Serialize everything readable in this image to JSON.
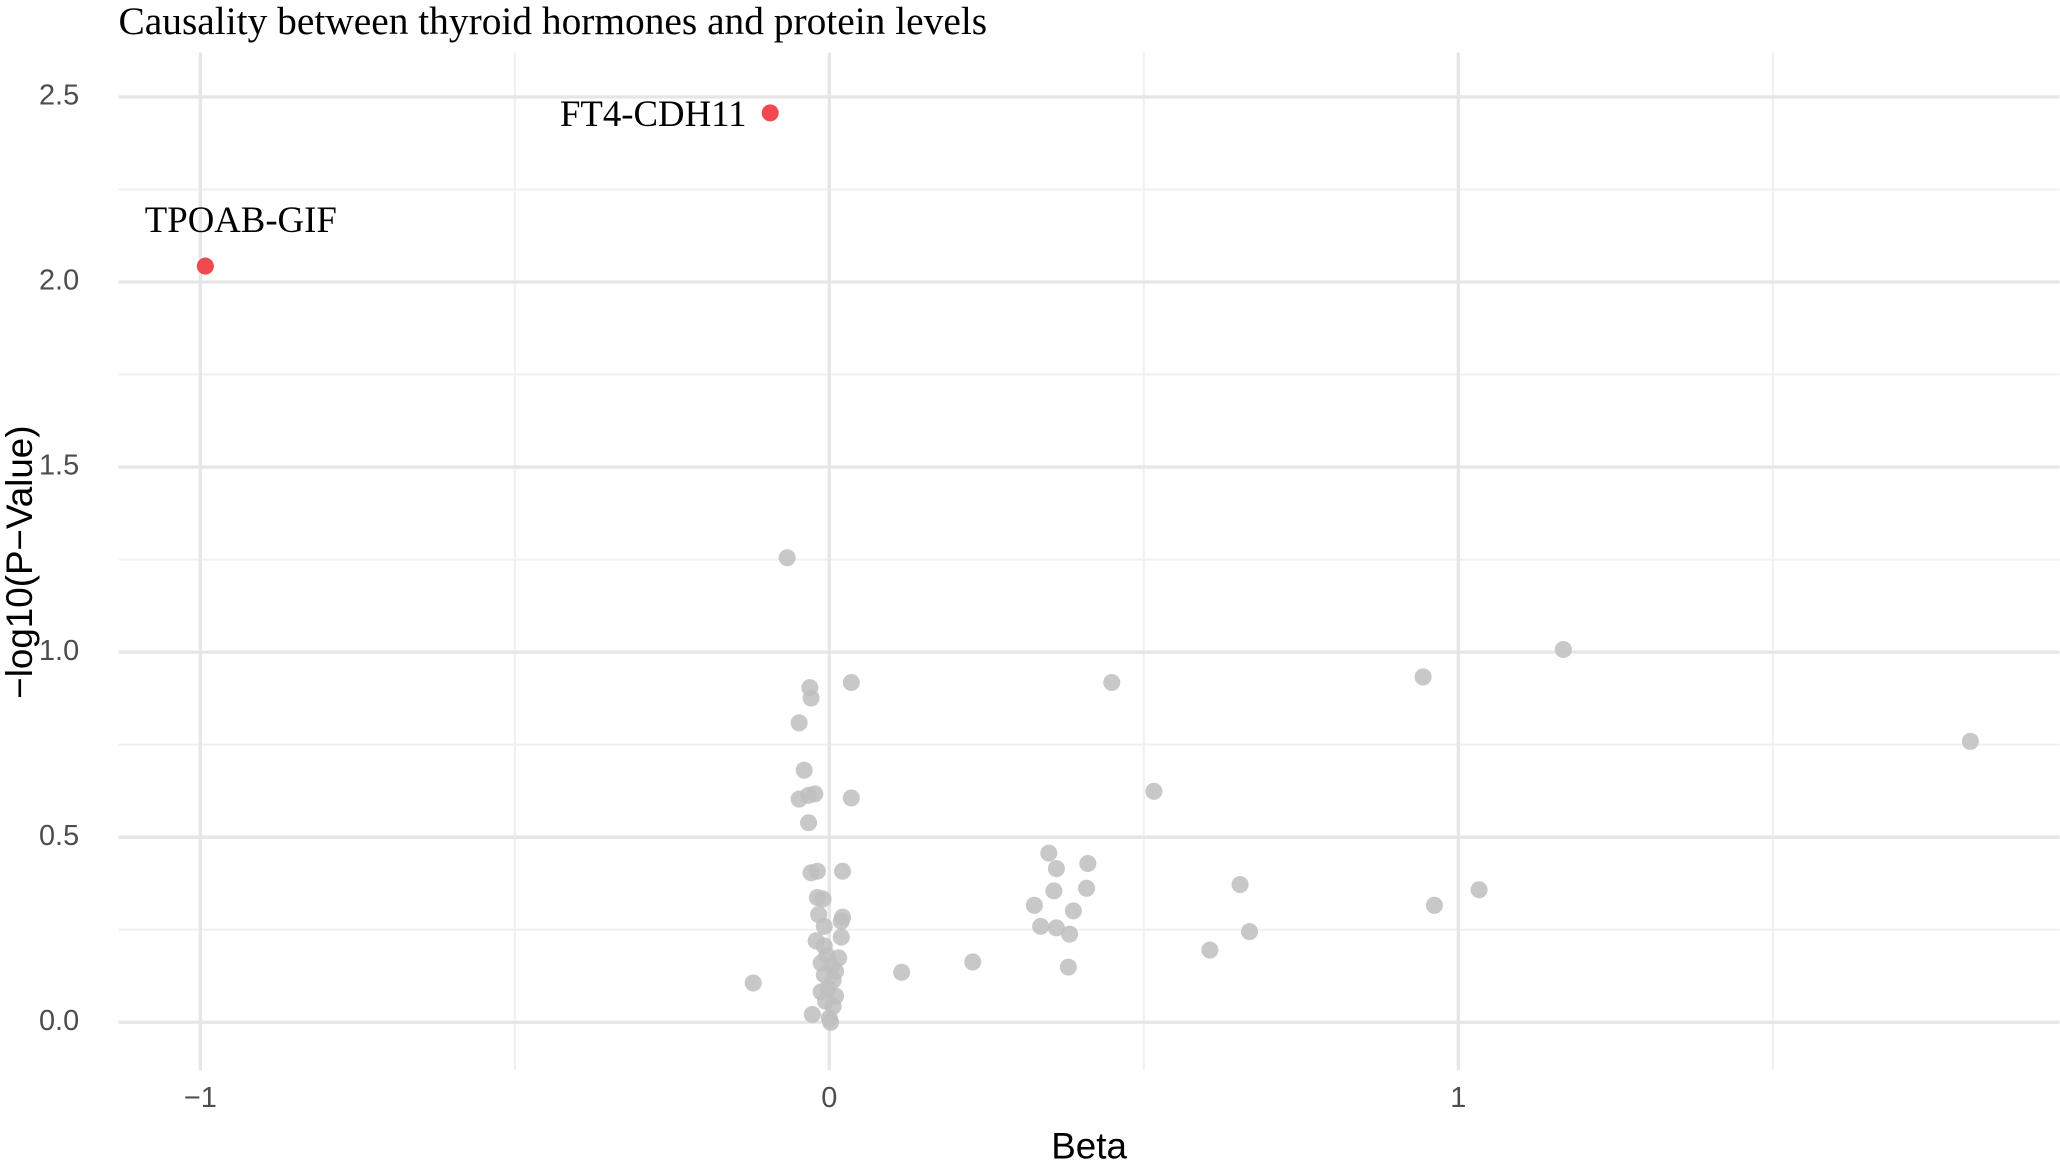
{
  "chart_data": {
    "type": "scatter",
    "title": "Causality between thyroid hormones and protein levels",
    "x_label": "Beta",
    "y_label": "−log10(P−Value)",
    "xlim": [
      -1.13,
      1.956
    ],
    "ylim": [
      -0.13,
      2.62
    ],
    "xticks": [
      {
        "value": -1,
        "label": "−1"
      },
      0,
      1
    ],
    "yticks": [
      {
        "value": 0,
        "label": "0.0"
      },
      0.5,
      {
        "value": 1,
        "label": "1.0"
      },
      1.5,
      {
        "value": 2,
        "label": "2.0"
      },
      2.5
    ],
    "grid": true,
    "series": [
      {
        "color": "#bebebe",
        "x": [
          -0.067,
          1.167,
          0.944,
          -0.031,
          0.035,
          0.449,
          -0.029,
          -0.048,
          1.814,
          -0.04,
          0.516,
          -0.048,
          -0.033,
          -0.023,
          0.035,
          -0.033,
          0.349,
          0.411,
          0.361,
          -0.029,
          -0.019,
          0.021,
          0.653,
          0.357,
          0.409,
          1.033,
          -0.019,
          -0.01,
          0.326,
          0.388,
          0.962,
          -0.017,
          0.021,
          0.019,
          -0.008,
          0.336,
          0.361,
          0.668,
          0.382,
          0.019,
          -0.021,
          -0.008,
          0.605,
          -0.004,
          0.015,
          -0.013,
          0.228,
          0.004,
          0.01,
          0.115,
          0.38,
          -0.008,
          0.006,
          -0.121,
          -0.002,
          -0.013,
          0.01,
          -0.006,
          0.006,
          -0.027,
          0.0,
          0.002
        ],
        "y": [
          1.255,
          1.007,
          0.933,
          0.904,
          0.918,
          0.918,
          0.876,
          0.809,
          0.759,
          0.681,
          0.624,
          0.603,
          0.613,
          0.617,
          0.606,
          0.539,
          0.457,
          0.429,
          0.415,
          0.404,
          0.408,
          0.408,
          0.372,
          0.355,
          0.362,
          0.358,
          0.337,
          0.333,
          0.316,
          0.301,
          0.316,
          0.291,
          0.284,
          0.273,
          0.259,
          0.259,
          0.255,
          0.245,
          0.238,
          0.23,
          0.22,
          0.206,
          0.195,
          0.181,
          0.174,
          0.16,
          0.163,
          0.152,
          0.138,
          0.135,
          0.149,
          0.128,
          0.113,
          0.106,
          0.092,
          0.082,
          0.071,
          0.057,
          0.043,
          0.021,
          0.011,
          0.0
        ]
      },
      {
        "color": "#f04a50",
        "x": [
          -0.094,
          -0.992
        ],
        "y": [
          2.457,
          2.043
        ],
        "labels": [
          "FT4-CDH11",
          "TPOAB-GIF"
        ]
      }
    ]
  }
}
